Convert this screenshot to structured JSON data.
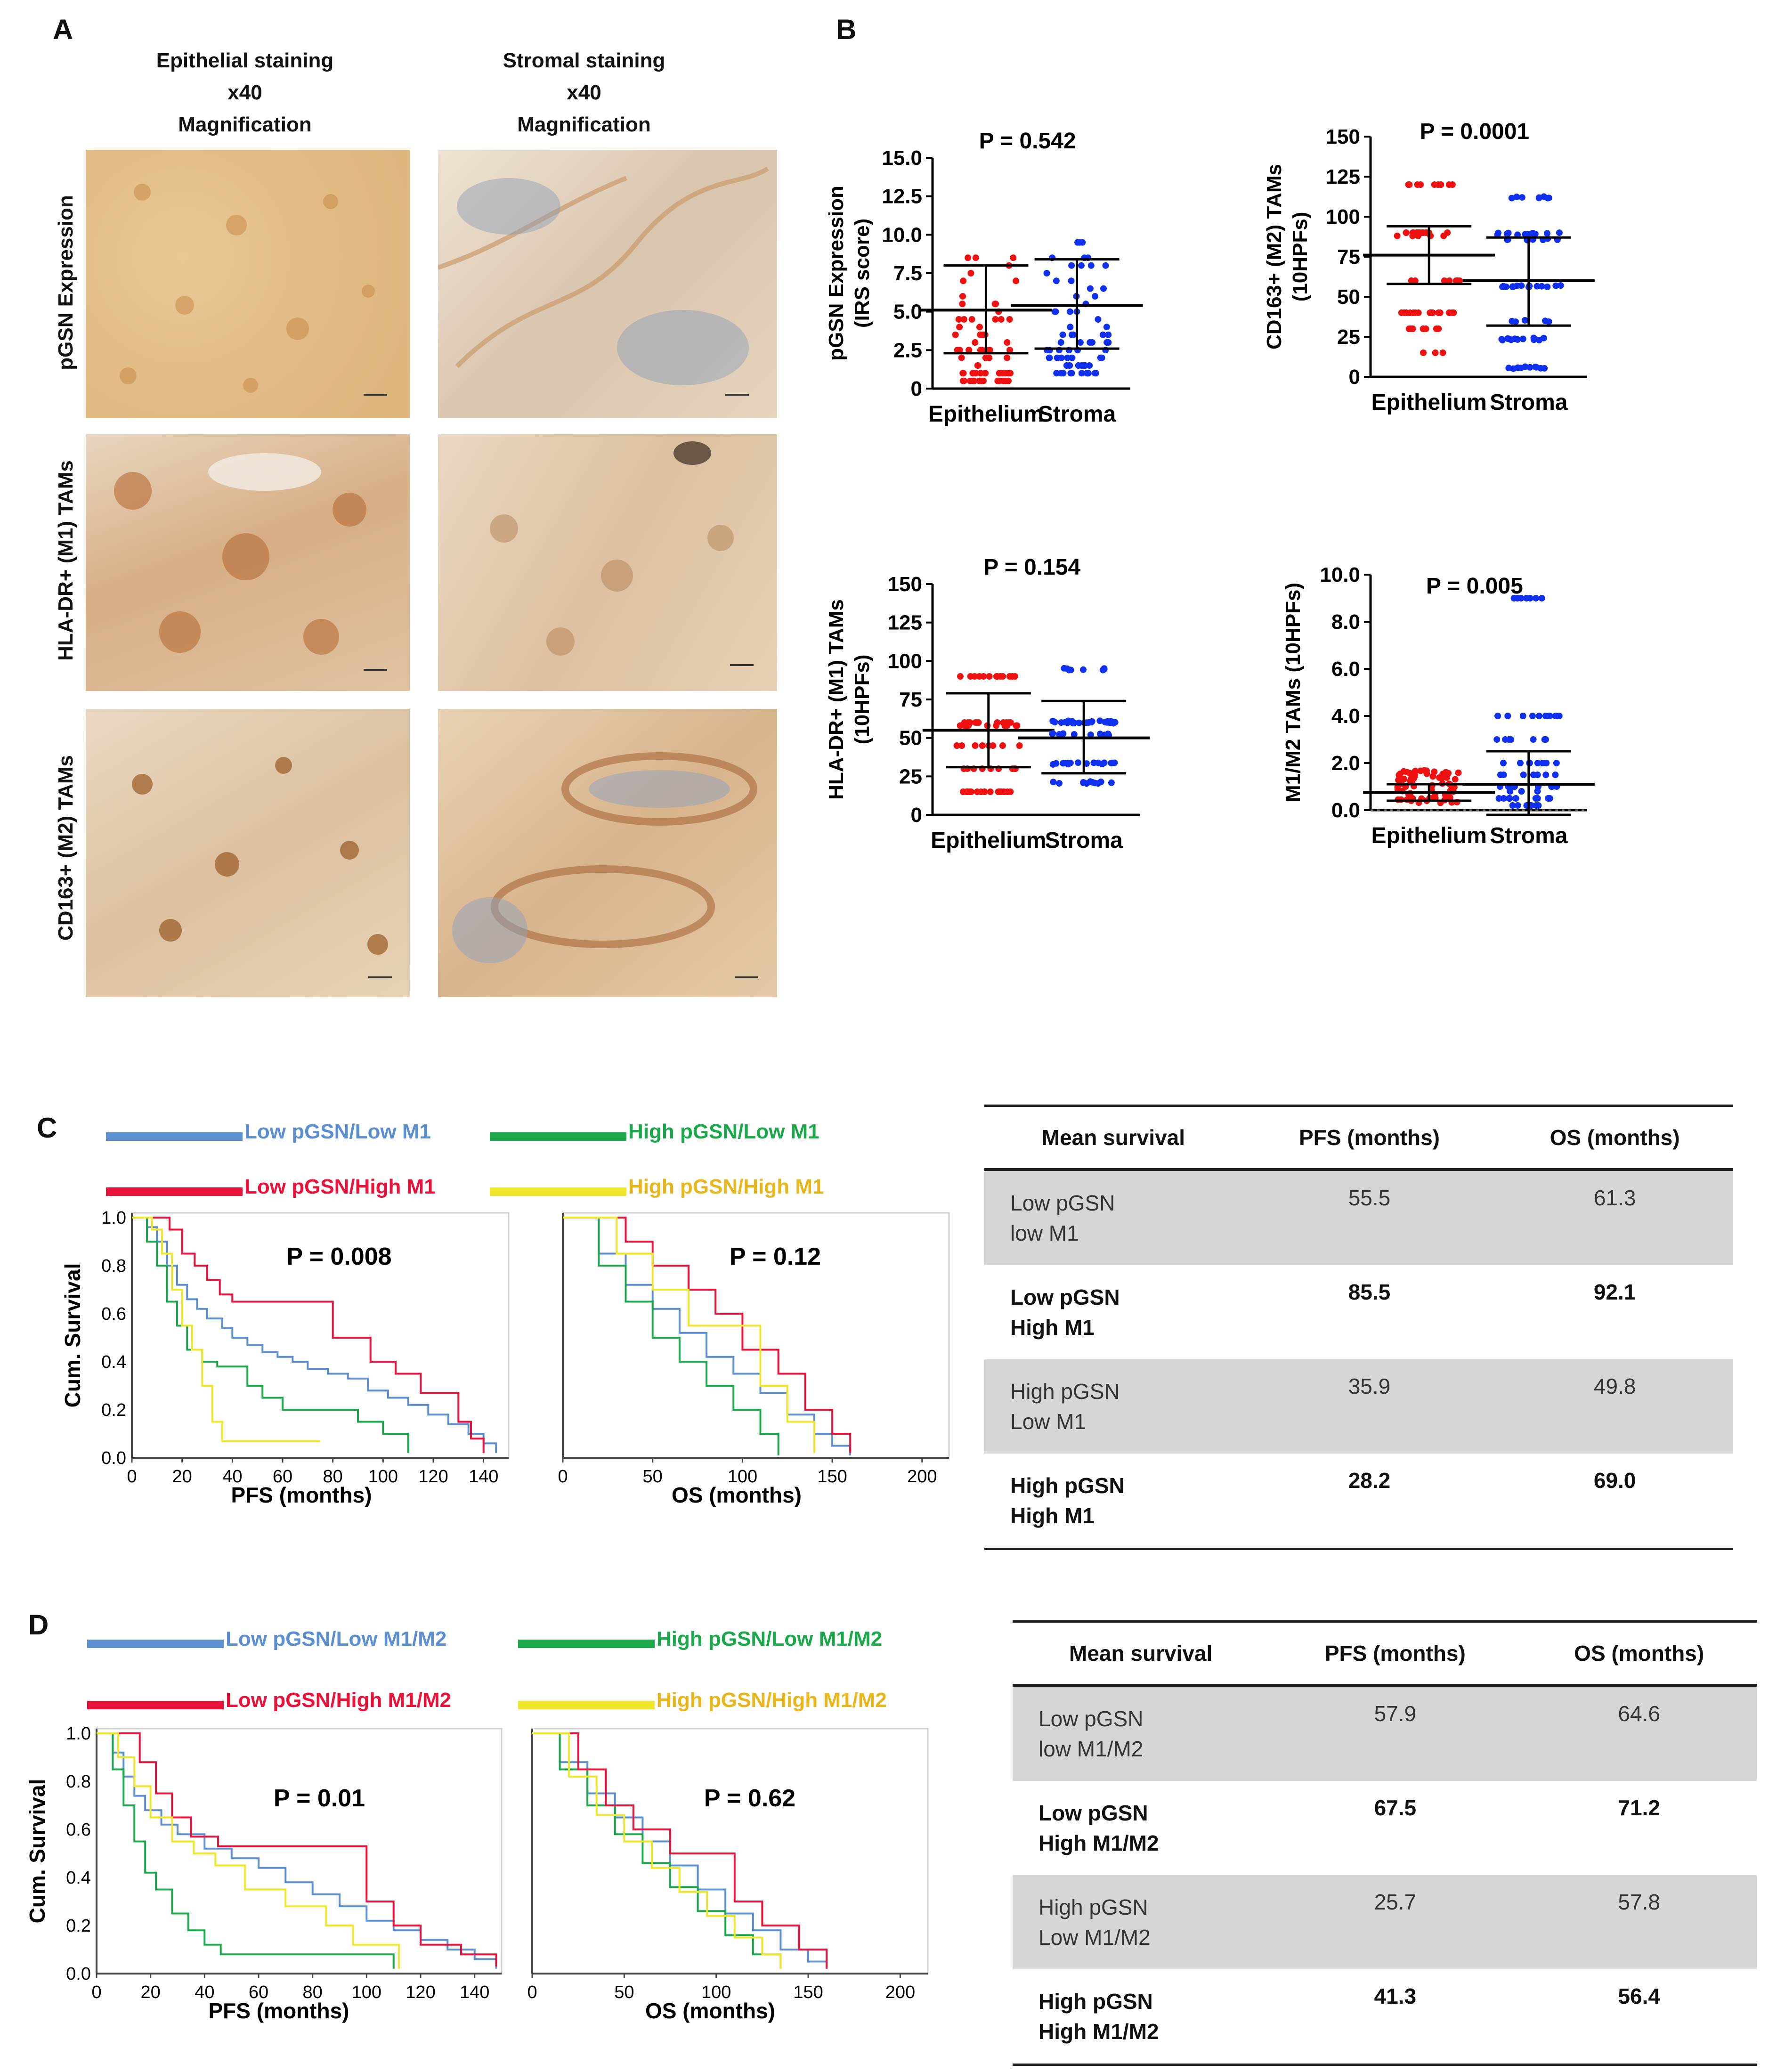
{
  "panelA": {
    "letter": "A",
    "col1": {
      "title": "Epithelial staining",
      "mag1": "x40",
      "mag2": "Magnification"
    },
    "col2": {
      "title": "Stromal staining",
      "mag1": "x40",
      "mag2": "Magnification"
    },
    "rows": [
      "pGSN Expression",
      "HLA-DR+ (M1) TAMs",
      "CD163+ (M2) TAMs"
    ]
  },
  "panelB": {
    "letter": "B",
    "charts": [
      {
        "id": "b1",
        "ylabel1": "pGSN Expression",
        "ylabel2": "(IRS score)",
        "p": "P = 0.542",
        "ticks": [
          "0",
          "2.5",
          "5.0",
          "7.5",
          "10.0",
          "12.5",
          "15.0"
        ],
        "tickvals": [
          0,
          2.5,
          5,
          7.5,
          10,
          12.5,
          15
        ],
        "ymax": 15,
        "groups": [
          "Epithelium",
          "Stroma"
        ],
        "mean": [
          5.1,
          5.4
        ],
        "sdlow": [
          2.3,
          2.6
        ],
        "sdhigh": [
          8.0,
          8.4
        ]
      },
      {
        "id": "b2",
        "ylabel1": "CD163+ (M2) TAMs",
        "ylabel2": "(10HPFs)",
        "p": "P = 0.0001",
        "ticks": [
          "0",
          "25",
          "50",
          "75",
          "100",
          "125",
          "150"
        ],
        "tickvals": [
          0,
          25,
          50,
          75,
          100,
          125,
          150
        ],
        "ymax": 150,
        "groups": [
          "Epithelium",
          "Stroma"
        ],
        "mean": [
          76,
          60
        ],
        "sdlow": [
          58,
          32
        ],
        "sdhigh": [
          94,
          87
        ]
      },
      {
        "id": "b3",
        "ylabel1": "HLA-DR+ (M1) TAMs",
        "ylabel2": "(10HPFs)",
        "p": "P = 0.154",
        "ticks": [
          "0",
          "25",
          "50",
          "75",
          "100",
          "125",
          "150"
        ],
        "tickvals": [
          0,
          25,
          50,
          75,
          100,
          125,
          150
        ],
        "ymax": 150,
        "groups": [
          "Epithelium",
          "Stroma"
        ],
        "mean": [
          55,
          50
        ],
        "sdlow": [
          31,
          27
        ],
        "sdhigh": [
          79,
          74
        ]
      },
      {
        "id": "b4",
        "ylabel1": "M1/M2 TAMs (10HPFs)",
        "ylabel2": "",
        "p": "P = 0.005",
        "ticks": [
          "0.0",
          "2.0",
          "4.0",
          "6.0",
          "8.0",
          "10.0"
        ],
        "tickvals": [
          0,
          2,
          4,
          6,
          8,
          10
        ],
        "ymax": 10,
        "groups": [
          "Epithelium",
          "Stroma"
        ],
        "mean": [
          0.75,
          1.1
        ],
        "sdlow": [
          0.4,
          -0.2
        ],
        "sdhigh": [
          1.1,
          2.5
        ]
      }
    ]
  },
  "panelC": {
    "letter": "C",
    "legend": [
      {
        "label": "Low pGSN/Low M1",
        "color": "#5b8fd0"
      },
      {
        "label": "High pGSN/Low M1",
        "color": "#1aa84a"
      },
      {
        "label": "Low pGSN/High M1",
        "color": "#e8123a"
      },
      {
        "label": "High pGSN/High M1",
        "color": "#f0e62a"
      }
    ],
    "pfs": {
      "p": "P = 0.008",
      "xlabel": "PFS (months)",
      "ylabel": "Cum. Survival",
      "xticks": [
        "0",
        "20",
        "40",
        "60",
        "80",
        "100",
        "120",
        "140"
      ],
      "xtickvals": [
        0,
        20,
        40,
        60,
        80,
        100,
        120,
        140
      ],
      "xmax": 150,
      "yticks": [
        "0.0",
        "0.2",
        "0.4",
        "0.6",
        "0.8",
        "1.0"
      ]
    },
    "os": {
      "p": "P = 0.12",
      "xlabel": "OS (months)",
      "xticks": [
        "0",
        "50",
        "100",
        "150",
        "200"
      ],
      "xtickvals": [
        0,
        50,
        100,
        150,
        200
      ],
      "xmax": 215
    },
    "table": {
      "headers": [
        "Mean survival",
        "PFS (months)",
        "OS (months)"
      ],
      "rows": [
        {
          "label1": "Low pGSN",
          "label2": "low M1",
          "pfs": "55.5",
          "os": "61.3"
        },
        {
          "label1": "Low pGSN",
          "label2": "High M1",
          "pfs": "85.5",
          "os": "92.1"
        },
        {
          "label1": "High pGSN",
          "label2": "Low M1",
          "pfs": "35.9",
          "os": "49.8"
        },
        {
          "label1": "High pGSN",
          "label2": "High M1",
          "pfs": "28.2",
          "os": "69.0"
        }
      ]
    }
  },
  "panelD": {
    "letter": "D",
    "legend": [
      {
        "label": "Low pGSN/Low M1/M2",
        "color": "#5b8fd0"
      },
      {
        "label": "High pGSN/Low M1/M2",
        "color": "#1aa84a"
      },
      {
        "label": "Low pGSN/High M1/M2",
        "color": "#e8123a"
      },
      {
        "label": "High pGSN/High M1/M2",
        "color": "#f0e62a"
      }
    ],
    "pfs": {
      "p": "P = 0.01",
      "xlabel": "PFS (months)",
      "ylabel": "Cum. Survival",
      "xticks": [
        "0",
        "20",
        "40",
        "60",
        "80",
        "100",
        "120",
        "140"
      ],
      "xtickvals": [
        0,
        20,
        40,
        60,
        80,
        100,
        120,
        140
      ],
      "xmax": 150,
      "yticks": [
        "0.0",
        "0.2",
        "0.4",
        "0.6",
        "0.8",
        "1.0"
      ]
    },
    "os": {
      "p": "P = 0.62",
      "xlabel": "OS (months)",
      "xticks": [
        "0",
        "50",
        "100",
        "150",
        "200"
      ],
      "xtickvals": [
        0,
        50,
        100,
        150,
        200
      ],
      "xmax": 215
    },
    "table": {
      "headers": [
        "Mean survival",
        "PFS (months)",
        "OS (months)"
      ],
      "rows": [
        {
          "label1": "Low pGSN",
          "label2": "low M1/M2",
          "pfs": "57.9",
          "os": "64.6"
        },
        {
          "label1": "Low pGSN",
          "label2": "High M1/M2",
          "pfs": "67.5",
          "os": "71.2"
        },
        {
          "label1": "High pGSN",
          "label2": "Low M1/M2",
          "pfs": "25.7",
          "os": "57.8"
        },
        {
          "label1": "High pGSN",
          "label2": "High M1/M2",
          "pfs": "41.3",
          "os": "56.4"
        }
      ]
    }
  },
  "chart_data": [
    {
      "type": "scatter",
      "title": "pGSN Expression",
      "ylabel": "pGSN Expression (IRS score)",
      "categories": [
        "Epithelium",
        "Stroma"
      ],
      "ylim": [
        0,
        15
      ],
      "mean": [
        5.1,
        5.4
      ],
      "sd": [
        [
          2.3,
          8.0
        ],
        [
          2.6,
          8.4
        ]
      ],
      "annotation": "P = 0.542"
    },
    {
      "type": "scatter",
      "title": "CD163+ (M2) TAMs",
      "ylabel": "CD163+ (M2) TAMs (10HPFs)",
      "categories": [
        "Epithelium",
        "Stroma"
      ],
      "ylim": [
        0,
        150
      ],
      "mean": [
        76,
        60
      ],
      "annotation": "P = 0.0001"
    },
    {
      "type": "scatter",
      "title": "HLA-DR+ (M1) TAMs",
      "ylabel": "HLA-DR+ (M1) TAMs (10HPFs)",
      "categories": [
        "Epithelium",
        "Stroma"
      ],
      "ylim": [
        0,
        150
      ],
      "mean": [
        55,
        50
      ],
      "annotation": "P = 0.154"
    },
    {
      "type": "scatter",
      "title": "M1/M2 TAMs",
      "ylabel": "M1/M2 TAMs (10HPFs)",
      "categories": [
        "Epithelium",
        "Stroma"
      ],
      "ylim": [
        0,
        10
      ],
      "mean": [
        0.75,
        1.1
      ],
      "annotation": "P = 0.005"
    },
    {
      "type": "line",
      "title": "C PFS",
      "xlabel": "PFS (months)",
      "ylabel": "Cum. Survival",
      "ylim": [
        0,
        1
      ],
      "xlim": [
        0,
        150
      ],
      "series": [
        {
          "name": "Low pGSN/Low M1",
          "x": [
            0,
            6,
            10,
            14,
            18,
            22,
            26,
            30,
            36,
            40,
            46,
            52,
            58,
            64,
            70,
            78,
            86,
            94,
            102,
            110,
            118,
            126,
            134,
            140,
            145
          ],
          "y": [
            1.0,
            0.96,
            0.9,
            0.8,
            0.72,
            0.66,
            0.62,
            0.58,
            0.54,
            0.5,
            0.47,
            0.44,
            0.42,
            0.4,
            0.37,
            0.35,
            0.33,
            0.28,
            0.25,
            0.22,
            0.18,
            0.14,
            0.1,
            0.06,
            0.02
          ]
        },
        {
          "name": "High pGSN/Low M1",
          "x": [
            0,
            6,
            10,
            14,
            18,
            22,
            28,
            34,
            40,
            46,
            52,
            60,
            70,
            80,
            90,
            100,
            110
          ],
          "y": [
            1.0,
            0.9,
            0.8,
            0.65,
            0.55,
            0.45,
            0.4,
            0.38,
            0.38,
            0.3,
            0.25,
            0.2,
            0.2,
            0.2,
            0.15,
            0.1,
            0.02
          ]
        },
        {
          "name": "Low pGSN/High M1",
          "x": [
            0,
            10,
            15,
            20,
            25,
            30,
            35,
            40,
            45,
            55,
            70,
            80,
            95,
            105,
            115,
            130,
            135,
            140
          ],
          "y": [
            1.0,
            1.0,
            0.95,
            0.85,
            0.8,
            0.74,
            0.68,
            0.65,
            0.65,
            0.65,
            0.65,
            0.5,
            0.4,
            0.35,
            0.27,
            0.15,
            0.08,
            0.02
          ]
        },
        {
          "name": "High pGSN/High M1",
          "x": [
            0,
            8,
            12,
            16,
            20,
            24,
            28,
            32,
            36,
            40,
            50,
            60,
            75
          ],
          "y": [
            1.0,
            0.95,
            0.85,
            0.7,
            0.55,
            0.45,
            0.3,
            0.15,
            0.07,
            0.07,
            0.07,
            0.07,
            0.07
          ]
        }
      ]
    },
    {
      "type": "line",
      "title": "C OS",
      "xlabel": "OS (months)",
      "ylim": [
        0,
        1
      ],
      "xlim": [
        0,
        215
      ],
      "series": [
        {
          "name": "Low pGSN/Low M1",
          "x": [
            0,
            20,
            35,
            50,
            65,
            80,
            95,
            110,
            125,
            140,
            150,
            160
          ],
          "y": [
            1.0,
            0.85,
            0.72,
            0.62,
            0.52,
            0.42,
            0.35,
            0.27,
            0.18,
            0.1,
            0.05,
            0.01
          ]
        },
        {
          "name": "High pGSN/Low M1",
          "x": [
            0,
            20,
            35,
            50,
            65,
            80,
            95,
            110,
            120
          ],
          "y": [
            1.0,
            0.8,
            0.65,
            0.5,
            0.4,
            0.3,
            0.2,
            0.1,
            0.01
          ]
        },
        {
          "name": "Low pGSN/High M1",
          "x": [
            0,
            35,
            50,
            70,
            85,
            100,
            120,
            135,
            150,
            160
          ],
          "y": [
            1.0,
            0.9,
            0.8,
            0.7,
            0.6,
            0.45,
            0.35,
            0.2,
            0.1,
            0.02
          ]
        },
        {
          "name": "High pGSN/High M1",
          "x": [
            0,
            30,
            50,
            70,
            90,
            110,
            125,
            140
          ],
          "y": [
            1.0,
            0.85,
            0.7,
            0.55,
            0.55,
            0.3,
            0.15,
            0.02
          ]
        }
      ]
    },
    {
      "type": "line",
      "title": "D PFS",
      "xlabel": "PFS (months)",
      "ylabel": "Cum. Survival",
      "ylim": [
        0,
        1
      ],
      "xlim": [
        0,
        150
      ],
      "series": [
        {
          "name": "Low pGSN/Low M1/M2",
          "x": [
            0,
            6,
            10,
            14,
            18,
            24,
            30,
            40,
            50,
            60,
            70,
            80,
            90,
            100,
            110,
            120,
            130,
            140,
            148
          ],
          "y": [
            1.0,
            0.92,
            0.82,
            0.74,
            0.68,
            0.62,
            0.58,
            0.52,
            0.48,
            0.44,
            0.38,
            0.33,
            0.28,
            0.22,
            0.18,
            0.14,
            0.1,
            0.06,
            0.02
          ]
        },
        {
          "name": "High pGSN/Low M1/M2",
          "x": [
            0,
            6,
            10,
            14,
            18,
            22,
            28,
            34,
            40,
            46,
            52,
            60,
            80,
            110
          ],
          "y": [
            1.0,
            0.85,
            0.7,
            0.55,
            0.42,
            0.35,
            0.25,
            0.18,
            0.12,
            0.08,
            0.08,
            0.08,
            0.08,
            0.02
          ]
        },
        {
          "name": "Low pGSN/High M1/M2",
          "x": [
            0,
            10,
            16,
            22,
            28,
            35,
            45,
            60,
            80,
            95,
            100,
            110,
            120,
            135,
            148
          ],
          "y": [
            1.0,
            1.0,
            0.88,
            0.75,
            0.65,
            0.57,
            0.53,
            0.53,
            0.53,
            0.53,
            0.3,
            0.2,
            0.12,
            0.08,
            0.03
          ]
        },
        {
          "name": "High pGSN/High M1/M2",
          "x": [
            0,
            8,
            14,
            20,
            28,
            36,
            44,
            55,
            70,
            85,
            95,
            110,
            112
          ],
          "y": [
            1.0,
            0.9,
            0.78,
            0.65,
            0.55,
            0.5,
            0.45,
            0.35,
            0.28,
            0.2,
            0.12,
            0.12,
            0.02
          ]
        }
      ]
    },
    {
      "type": "line",
      "title": "D OS",
      "xlabel": "OS (months)",
      "ylim": [
        0,
        1
      ],
      "xlim": [
        0,
        215
      ],
      "series": [
        {
          "name": "Low pGSN/Low M1/M2",
          "x": [
            0,
            15,
            30,
            45,
            60,
            75,
            90,
            105,
            120,
            135,
            150,
            160
          ],
          "y": [
            1.0,
            0.88,
            0.75,
            0.65,
            0.55,
            0.45,
            0.35,
            0.25,
            0.18,
            0.1,
            0.05,
            0.02
          ]
        },
        {
          "name": "High pGSN/Low M1/M2",
          "x": [
            0,
            15,
            30,
            45,
            60,
            75,
            90,
            105,
            120,
            135
          ],
          "y": [
            1.0,
            0.85,
            0.7,
            0.58,
            0.46,
            0.36,
            0.26,
            0.16,
            0.08,
            0.02
          ]
        },
        {
          "name": "Low pGSN/High M1/M2",
          "x": [
            0,
            25,
            40,
            55,
            75,
            95,
            110,
            125,
            145,
            160
          ],
          "y": [
            1.0,
            0.85,
            0.7,
            0.6,
            0.5,
            0.5,
            0.3,
            0.2,
            0.1,
            0.02
          ]
        },
        {
          "name": "High pGSN/High M1/M2",
          "x": [
            0,
            20,
            35,
            50,
            65,
            80,
            95,
            110,
            125,
            135
          ],
          "y": [
            1.0,
            0.82,
            0.66,
            0.55,
            0.44,
            0.34,
            0.24,
            0.15,
            0.08,
            0.02
          ]
        }
      ]
    }
  ]
}
